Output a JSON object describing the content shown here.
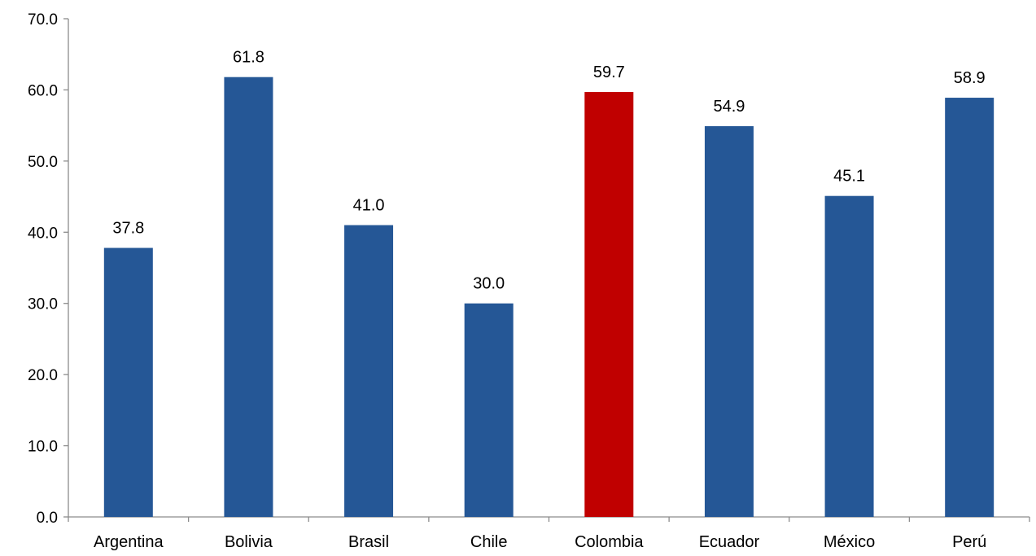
{
  "chart_data": {
    "type": "bar",
    "categories": [
      "Argentina",
      "Bolivia",
      "Brasil",
      "Chile",
      "Colombia",
      "Ecuador",
      "México",
      "Perú"
    ],
    "values": [
      37.8,
      61.8,
      41.0,
      30.0,
      59.7,
      54.9,
      45.1,
      58.9
    ],
    "value_labels": [
      "37.8",
      "61.8",
      "41.0",
      "30.0",
      "59.7",
      "54.9",
      "45.1",
      "58.9"
    ],
    "ylim": [
      0,
      70
    ],
    "yticks": [
      0,
      10,
      20,
      30,
      40,
      50,
      60,
      70
    ],
    "ytick_labels": [
      "0.0",
      "10.0",
      "20.0",
      "30.0",
      "40.0",
      "50.0",
      "60.0",
      "70.0"
    ],
    "title": "",
    "xlabel": "",
    "ylabel": "",
    "grid": false,
    "legend": "none",
    "colors": {
      "default_bar": "#255796",
      "highlight_bar": "#C00000",
      "axis": "#8C8C8C"
    },
    "highlight_category": "Colombia"
  }
}
